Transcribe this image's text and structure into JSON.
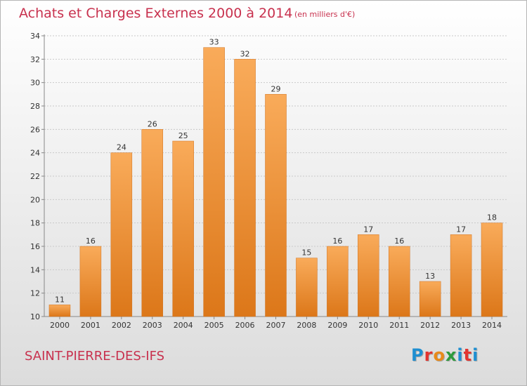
{
  "header": {
    "title": "Achats et Charges Externes 2000 à 2014",
    "unit": "(en milliers d'€)"
  },
  "footer": {
    "place": "SAINT-PIERRE-DES-IFS",
    "logo": "Proxiti"
  },
  "colors": {
    "title": "#c8314e",
    "bar_light": "#f7a653",
    "bar_dark": "#dd7a1c"
  },
  "chart_data": {
    "type": "bar",
    "title": "Achats et Charges Externes 2000 à 2014",
    "categories": [
      "2000",
      "2001",
      "2002",
      "2003",
      "2004",
      "2005",
      "2006",
      "2007",
      "2008",
      "2009",
      "2010",
      "2011",
      "2012",
      "2013",
      "2014"
    ],
    "values": [
      11,
      16,
      24,
      26,
      25,
      33,
      32,
      29,
      15,
      16,
      17,
      16,
      13,
      17,
      18
    ],
    "ylim": [
      10,
      34
    ],
    "yticks": [
      10,
      12,
      14,
      16,
      18,
      20,
      22,
      24,
      26,
      28,
      30,
      32,
      34
    ],
    "grid": true
  }
}
